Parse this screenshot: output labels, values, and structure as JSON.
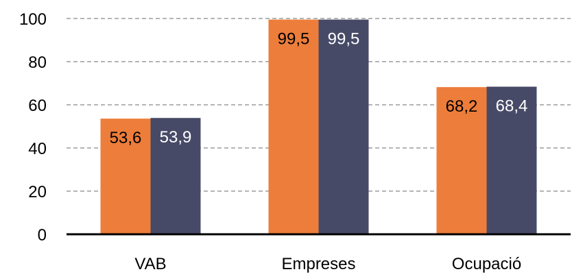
{
  "chart_data": {
    "type": "bar",
    "categories": [
      "VAB",
      "Empreses",
      "Ocupació"
    ],
    "series": [
      {
        "values": [
          53.6,
          99.5,
          68.2
        ],
        "labels": [
          "53,6",
          "99,5",
          "68,2"
        ],
        "color": "#ed7d3a",
        "label_color": "#000000"
      },
      {
        "values": [
          53.9,
          99.5,
          68.4
        ],
        "labels": [
          "53,9",
          "99,5",
          "68,4"
        ],
        "color": "#474a67",
        "label_color": "#ffffff"
      }
    ],
    "y_ticks": [
      "0",
      "20",
      "40",
      "60",
      "80",
      "100"
    ],
    "ylim": [
      0,
      100
    ],
    "grid": true,
    "grid_color": "#888888",
    "legend": "none",
    "title": "",
    "xlabel": "",
    "ylabel": ""
  }
}
